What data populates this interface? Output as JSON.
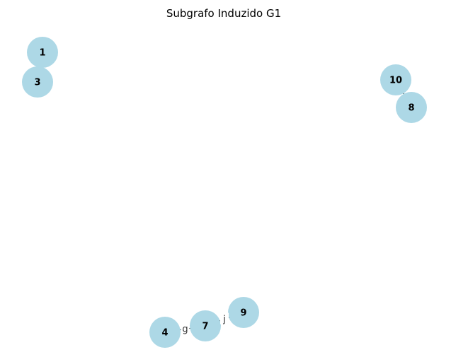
{
  "title": "Subgrafo Induzido G1",
  "colors": {
    "node_fill": "#add8e6",
    "edge": "#000000",
    "background": "#ffffff"
  },
  "nodes": [
    {
      "id": "1",
      "label": "1"
    },
    {
      "id": "3",
      "label": "3"
    },
    {
      "id": "10",
      "label": "10"
    },
    {
      "id": "8",
      "label": "8"
    },
    {
      "id": "4",
      "label": "4"
    },
    {
      "id": "7",
      "label": "7"
    },
    {
      "id": "9",
      "label": "9"
    }
  ],
  "edges": [
    {
      "source": "1",
      "target": "3",
      "label": ""
    },
    {
      "source": "10",
      "target": "8",
      "label": ""
    },
    {
      "source": "4",
      "target": "7",
      "label": "g"
    },
    {
      "source": "7",
      "target": "9",
      "label": "j"
    }
  ]
}
